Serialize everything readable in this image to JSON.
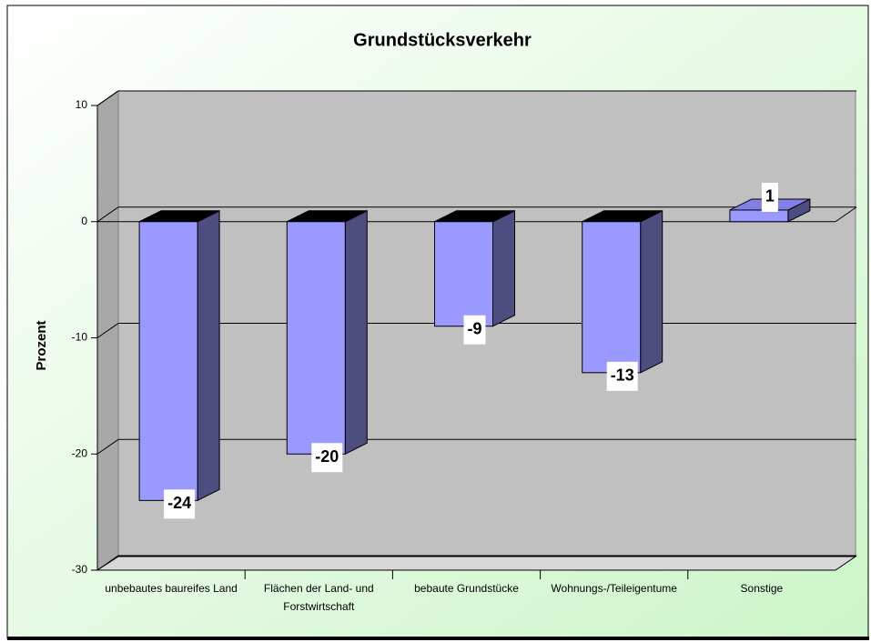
{
  "chart_data": {
    "type": "bar",
    "title": "Grundstücksverkehr",
    "y_label": "Prozent",
    "categories": [
      "unbebautes baureifes Land",
      "Flächen der Land- und Forstwirtschaft",
      "bebaute Grundstücke",
      "Wohnungs-/Teileigentume",
      "Sonstige"
    ],
    "values": [
      -24,
      -20,
      -9,
      -13,
      1
    ],
    "color": "#9999ff",
    "ylim": [
      -30,
      10
    ],
    "yticks": [
      10,
      0,
      -10,
      -20,
      -30
    ],
    "grid": true
  }
}
